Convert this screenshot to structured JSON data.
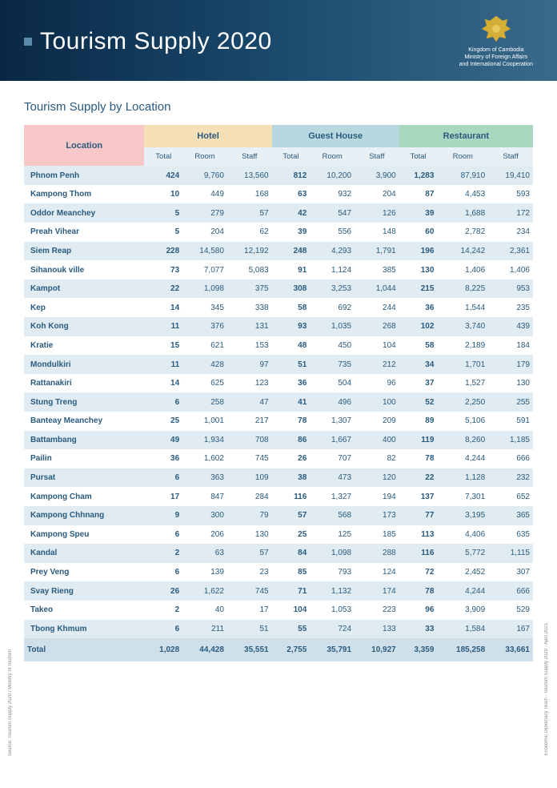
{
  "header": {
    "title": "Tourism Supply 2020",
    "org_line1": "Kingdom of Cambodia",
    "org_line2": "Ministry of Foreign Affairs",
    "org_line3": "and International Cooperation"
  },
  "section_title": "Tourism Supply by Location",
  "columns": {
    "location": "Location",
    "groups": [
      {
        "label": "Hotel",
        "class": "th-hotel"
      },
      {
        "label": "Guest House",
        "class": "th-guest"
      },
      {
        "label": "Restaurant",
        "class": "th-rest"
      }
    ],
    "sub": [
      "Total",
      "Room",
      "Staff"
    ]
  },
  "rows": [
    {
      "loc": "Phnom Penh",
      "h": [
        "424",
        "9,760",
        "13,560"
      ],
      "g": [
        "812",
        "10,200",
        "3,900"
      ],
      "r": [
        "1,283",
        "87,910",
        "19,410"
      ]
    },
    {
      "loc": "Kampong Thom",
      "h": [
        "10",
        "449",
        "168"
      ],
      "g": [
        "63",
        "932",
        "204"
      ],
      "r": [
        "87",
        "4,453",
        "593"
      ]
    },
    {
      "loc": "Oddor Meanchey",
      "h": [
        "5",
        "279",
        "57"
      ],
      "g": [
        "42",
        "547",
        "126"
      ],
      "r": [
        "39",
        "1,688",
        "172"
      ]
    },
    {
      "loc": "Preah Vihear",
      "h": [
        "5",
        "204",
        "62"
      ],
      "g": [
        "39",
        "556",
        "148"
      ],
      "r": [
        "60",
        "2,782",
        "234"
      ]
    },
    {
      "loc": "Siem Reap",
      "h": [
        "228",
        "14,580",
        "12,192"
      ],
      "g": [
        "248",
        "4,293",
        "1,791"
      ],
      "r": [
        "196",
        "14,242",
        "2,361"
      ]
    },
    {
      "loc": "Sihanouk ville",
      "h": [
        "73",
        "7,077",
        "5,083"
      ],
      "g": [
        "91",
        "1,124",
        "385"
      ],
      "r": [
        "130",
        "1,406",
        "1,406"
      ]
    },
    {
      "loc": "Kampot",
      "h": [
        "22",
        "1,098",
        "375"
      ],
      "g": [
        "308",
        "3,253",
        "1,044"
      ],
      "r": [
        "215",
        "8,225",
        "953"
      ]
    },
    {
      "loc": "Kep",
      "h": [
        "14",
        "345",
        "338"
      ],
      "g": [
        "58",
        "692",
        "244"
      ],
      "r": [
        "36",
        "1,544",
        "235"
      ]
    },
    {
      "loc": "Koh Kong",
      "h": [
        "11",
        "376",
        "131"
      ],
      "g": [
        "93",
        "1,035",
        "268"
      ],
      "r": [
        "102",
        "3,740",
        "439"
      ]
    },
    {
      "loc": "Kratie",
      "h": [
        "15",
        "621",
        "153"
      ],
      "g": [
        "48",
        "450",
        "104"
      ],
      "r": [
        "58",
        "2,189",
        "184"
      ]
    },
    {
      "loc": "Mondulkiri",
      "h": [
        "11",
        "428",
        "97"
      ],
      "g": [
        "51",
        "735",
        "212"
      ],
      "r": [
        "34",
        "1,701",
        "179"
      ]
    },
    {
      "loc": "Rattanakiri",
      "h": [
        "14",
        "625",
        "123"
      ],
      "g": [
        "36",
        "504",
        "96"
      ],
      "r": [
        "37",
        "1,527",
        "130"
      ]
    },
    {
      "loc": "Stung Treng",
      "h": [
        "6",
        "258",
        "47"
      ],
      "g": [
        "41",
        "496",
        "100"
      ],
      "r": [
        "52",
        "2,250",
        "255"
      ]
    },
    {
      "loc": "Banteay Meanchey",
      "h": [
        "25",
        "1,001",
        "217"
      ],
      "g": [
        "78",
        "1,307",
        "209"
      ],
      "r": [
        "89",
        "5,106",
        "591"
      ]
    },
    {
      "loc": "Battambang",
      "h": [
        "49",
        "1,934",
        "708"
      ],
      "g": [
        "86",
        "1,667",
        "400"
      ],
      "r": [
        "119",
        "8,260",
        "1,185"
      ]
    },
    {
      "loc": "Pailin",
      "h": [
        "36",
        "1,602",
        "745"
      ],
      "g": [
        "26",
        "707",
        "82"
      ],
      "r": [
        "78",
        "4,244",
        "666"
      ]
    },
    {
      "loc": "Pursat",
      "h": [
        "6",
        "363",
        "109"
      ],
      "g": [
        "38",
        "473",
        "120"
      ],
      "r": [
        "22",
        "1,128",
        "232"
      ]
    },
    {
      "loc": "Kampong Cham",
      "h": [
        "17",
        "847",
        "284"
      ],
      "g": [
        "116",
        "1,327",
        "194"
      ],
      "r": [
        "137",
        "7,301",
        "652"
      ]
    },
    {
      "loc": "Kampong Chhnang",
      "h": [
        "9",
        "300",
        "79"
      ],
      "g": [
        "57",
        "568",
        "173"
      ],
      "r": [
        "77",
        "3,195",
        "365"
      ]
    },
    {
      "loc": "Kampong Speu",
      "h": [
        "6",
        "206",
        "130"
      ],
      "g": [
        "25",
        "125",
        "185"
      ],
      "r": [
        "113",
        "4,406",
        "635"
      ]
    },
    {
      "loc": "Kandal",
      "h": [
        "2",
        "63",
        "57"
      ],
      "g": [
        "84",
        "1,098",
        "288"
      ],
      "r": [
        "116",
        "5,772",
        "1,115"
      ]
    },
    {
      "loc": "Prey Veng",
      "h": [
        "6",
        "139",
        "23"
      ],
      "g": [
        "85",
        "793",
        "124"
      ],
      "r": [
        "72",
        "2,452",
        "307"
      ]
    },
    {
      "loc": "Svay Rieng",
      "h": [
        "26",
        "1,622",
        "745"
      ],
      "g": [
        "71",
        "1,132",
        "174"
      ],
      "r": [
        "78",
        "4,244",
        "666"
      ]
    },
    {
      "loc": "Takeo",
      "h": [
        "2",
        "40",
        "17"
      ],
      "g": [
        "104",
        "1,053",
        "223"
      ],
      "r": [
        "96",
        "3,909",
        "529"
      ]
    },
    {
      "loc": "Tbong Khmum",
      "h": [
        "6",
        "211",
        "51"
      ],
      "g": [
        "55",
        "724",
        "133"
      ],
      "r": [
        "33",
        "1,584",
        "167"
      ]
    }
  ],
  "total": {
    "loc": "Total",
    "h": [
      "1,028",
      "44,428",
      "35,551"
    ],
    "g": [
      "2,755",
      "35,791",
      "10,927"
    ],
    "r": [
      "3,359",
      "185,258",
      "33,661"
    ]
  },
  "side_left": "Source: Tourism Supply 2020 / Ministry of Tourism",
  "side_right": "Economic Diplomacy Team - Tourism Supply 2020 - April 2021",
  "colors": {
    "header_grad_start": "#0a2845",
    "header_grad_end": "#3a6a8a",
    "loc_header_bg": "#f8c8c8",
    "hotel_bg": "#f5e0b8",
    "guest_bg": "#b8d8e0",
    "rest_bg": "#a8d8c0",
    "sub_bg": "#e8f0f5",
    "alt_row_bg": "#e0ecf2",
    "text": "#2a5a7e"
  }
}
